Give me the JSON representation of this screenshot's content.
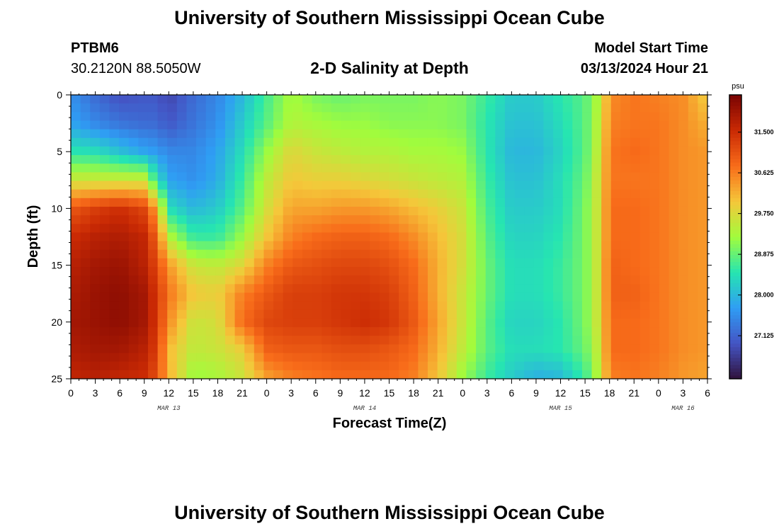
{
  "header": {
    "title": "University of Southern Mississippi Ocean Cube",
    "station_id": "PTBM6",
    "station_coords": "30.2120N  88.5050W",
    "subtitle": "2-D Salinity at Depth",
    "model_start_label": "Model Start Time",
    "model_start_value": "03/13/2024 Hour 21"
  },
  "footer": {
    "title": "University of Southern Mississippi Ocean Cube"
  },
  "chart_data": {
    "type": "heatmap",
    "title": "2-D Salinity at Depth",
    "xlabel": "Forecast Time(Z)",
    "ylabel": "Depth (ft)",
    "colorbar_unit": "psu",
    "x_range_hours": [
      0,
      78
    ],
    "y_range_ft": [
      0,
      25
    ],
    "y_ticks": [
      0,
      5,
      10,
      15,
      20,
      25
    ],
    "x_tick_labels": [
      "0",
      "3",
      "6",
      "9",
      "12",
      "15",
      "18",
      "21",
      "0",
      "3",
      "6",
      "9",
      "12",
      "15",
      "18",
      "21",
      "0",
      "3",
      "6",
      "9",
      "12",
      "15",
      "18",
      "21",
      "0",
      "3",
      "6"
    ],
    "date_labels": [
      {
        "text": "MAR 13",
        "hour": 12
      },
      {
        "text": "MAR 14",
        "hour": 36
      },
      {
        "text": "MAR 15",
        "hour": 60
      },
      {
        "text": "MAR 16",
        "hour": 75
      }
    ],
    "colorbar_ticks": [
      "31.500",
      "30.625",
      "29.750",
      "28.875",
      "28.000",
      "27.125"
    ],
    "colorbar_range": [
      26.2,
      32.3
    ],
    "colorbar_colors": [
      "#30123b",
      "#4454c4",
      "#2f9df4",
      "#26e5b1",
      "#a2fc3c",
      "#f5c73a",
      "#f86c1a",
      "#ca2a04",
      "#7a0403"
    ],
    "depths_ft": [
      0,
      2.5,
      5,
      7.5,
      10,
      12.5,
      15,
      17.5,
      20,
      22.5,
      25
    ],
    "times_hr": [
      0,
      3,
      6,
      9,
      10.5,
      12,
      15,
      18,
      21,
      24,
      27,
      30,
      33,
      36,
      39,
      42,
      45,
      48,
      51,
      54,
      57,
      60,
      63,
      65,
      66,
      69,
      72,
      75,
      78
    ],
    "salinity_psu": [
      [
        27.6,
        27.2,
        26.9,
        27.0,
        27.0,
        26.8,
        27.2,
        27.5,
        28.0,
        28.7,
        29.3,
        29.0,
        28.9,
        29.0,
        29.0,
        29.0,
        29.1,
        29.0,
        28.6,
        28.2,
        28.2,
        28.5,
        28.8,
        29.5,
        30.5,
        30.7,
        30.6,
        30.5,
        29.9
      ],
      [
        27.8,
        27.5,
        27.3,
        27.2,
        27.2,
        27.0,
        27.3,
        27.6,
        28.2,
        28.8,
        29.4,
        29.3,
        29.2,
        29.2,
        29.1,
        29.1,
        29.1,
        29.0,
        28.5,
        28.1,
        28.1,
        28.4,
        28.8,
        29.6,
        30.6,
        30.7,
        30.7,
        30.5,
        30.2
      ],
      [
        28.5,
        28.4,
        28.1,
        27.8,
        27.7,
        27.5,
        27.5,
        27.8,
        28.4,
        29.2,
        29.8,
        29.6,
        29.5,
        29.4,
        29.4,
        29.3,
        29.3,
        29.2,
        28.5,
        28.0,
        28.0,
        28.3,
        28.8,
        29.7,
        30.7,
        30.8,
        30.7,
        30.5,
        30.4
      ],
      [
        29.6,
        29.6,
        29.6,
        29.6,
        28.5,
        27.8,
        27.6,
        27.9,
        28.6,
        29.5,
        30.0,
        29.9,
        29.9,
        29.8,
        29.7,
        29.6,
        29.5,
        29.4,
        28.6,
        28.1,
        28.1,
        28.4,
        28.9,
        29.8,
        30.7,
        30.7,
        30.7,
        30.5,
        30.4
      ],
      [
        31.0,
        31.3,
        31.5,
        31.2,
        30.3,
        28.4,
        28.0,
        28.2,
        28.8,
        29.7,
        30.3,
        30.3,
        30.4,
        30.4,
        30.3,
        30.1,
        29.9,
        29.6,
        28.7,
        28.2,
        28.2,
        28.4,
        29.0,
        29.8,
        30.8,
        30.8,
        30.7,
        30.5,
        30.4
      ],
      [
        31.5,
        31.7,
        31.8,
        31.6,
        30.9,
        29.4,
        28.6,
        28.6,
        29.2,
        30.0,
        30.6,
        30.8,
        30.9,
        30.9,
        30.8,
        30.5,
        30.1,
        29.7,
        28.8,
        28.3,
        28.3,
        28.5,
        29.0,
        29.8,
        30.8,
        30.8,
        30.7,
        30.5,
        30.4
      ],
      [
        31.7,
        31.9,
        32.0,
        31.7,
        31.2,
        30.4,
        29.6,
        29.5,
        29.8,
        30.6,
        31.0,
        31.1,
        31.2,
        31.2,
        31.1,
        30.8,
        30.2,
        29.7,
        28.9,
        28.4,
        28.4,
        28.6,
        29.0,
        29.8,
        30.9,
        30.8,
        30.7,
        30.5,
        30.4
      ],
      [
        31.8,
        32.0,
        32.1,
        31.9,
        31.4,
        30.7,
        30.0,
        29.9,
        30.6,
        31.0,
        31.3,
        31.3,
        31.4,
        31.4,
        31.3,
        30.9,
        30.2,
        29.6,
        28.9,
        28.4,
        28.4,
        28.6,
        29.0,
        29.8,
        30.9,
        30.9,
        30.7,
        30.5,
        30.4
      ],
      [
        31.9,
        32.0,
        32.1,
        31.9,
        31.4,
        30.5,
        29.6,
        29.7,
        30.8,
        31.2,
        31.3,
        31.3,
        31.4,
        31.5,
        31.4,
        31.0,
        30.3,
        29.6,
        28.8,
        28.3,
        28.3,
        28.5,
        29.0,
        29.8,
        30.8,
        30.8,
        30.7,
        30.5,
        30.4
      ],
      [
        31.8,
        31.9,
        31.9,
        31.7,
        31.3,
        30.1,
        29.5,
        29.6,
        29.9,
        30.9,
        31.0,
        31.0,
        31.1,
        31.1,
        31.0,
        30.8,
        30.2,
        29.5,
        28.8,
        28.4,
        28.4,
        28.5,
        28.9,
        29.7,
        30.8,
        30.8,
        30.7,
        30.5,
        30.4
      ],
      [
        31.6,
        31.7,
        31.6,
        31.5,
        31.1,
        30.2,
        29.2,
        29.3,
        29.6,
        30.3,
        30.6,
        30.7,
        30.8,
        30.8,
        30.8,
        30.6,
        30.0,
        29.2,
        28.6,
        28.2,
        27.9,
        28.0,
        28.6,
        29.6,
        30.6,
        30.7,
        30.6,
        30.4,
        30.3
      ]
    ]
  }
}
